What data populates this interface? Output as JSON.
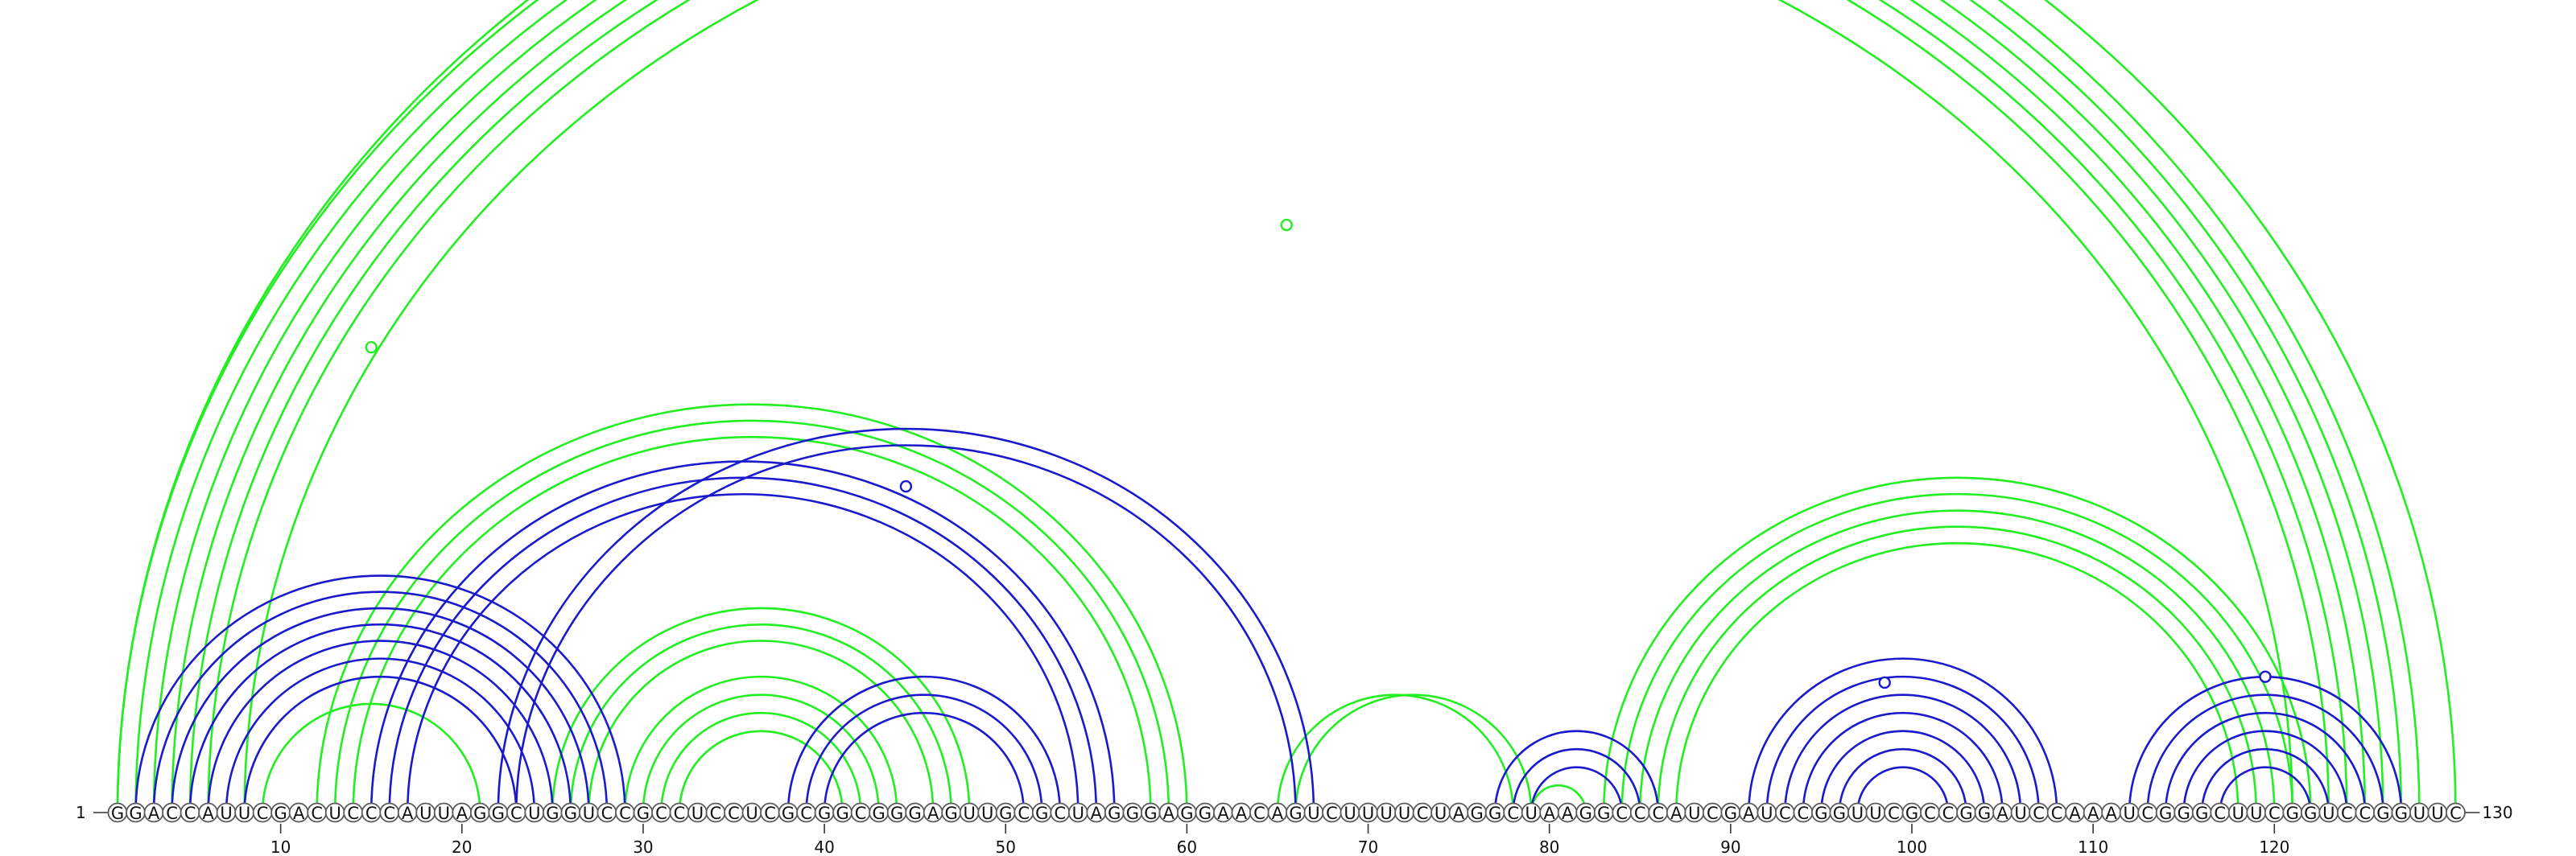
{
  "sequence": "GGACCAUUCGACUCCCAUUAGGCUGGUCCGCCUCCUCGCGGCGGGAGUUGCGCUAGGGAGGAACAGUCUUUUCUAGGCUAAGGCCCAUCGAUCCGGUUCGCCGGAUCCAAAUCGGGCUUCGGUCCGGUUC",
  "start_label": "1",
  "end_label": "130",
  "ticks": [
    10,
    20,
    30,
    40,
    50,
    60,
    70,
    80,
    90,
    100,
    110,
    120
  ],
  "colors": {
    "green": "#22ee22",
    "blue": "#1a1acc"
  },
  "arc_sets": [
    {
      "color": "green",
      "arcs": [
        [
          1,
          130
        ],
        [
          1,
          128
        ],
        [
          2,
          127
        ],
        [
          3,
          126
        ],
        [
          4,
          125
        ],
        [
          5,
          124
        ],
        [
          6,
          123
        ],
        [
          8,
          121
        ]
      ]
    },
    {
      "color": "green",
      "arcs": [
        [
          12,
          60
        ],
        [
          13,
          59
        ],
        [
          14,
          58
        ]
      ]
    },
    {
      "color": "green",
      "arcs": [
        [
          25,
          48
        ],
        [
          26,
          47
        ],
        [
          27,
          46
        ]
      ]
    },
    {
      "color": "green",
      "arcs": [
        [
          9,
          21
        ]
      ]
    },
    {
      "color": "green",
      "arcs": [
        [
          29,
          44
        ],
        [
          30,
          43
        ],
        [
          31,
          42
        ],
        [
          32,
          41
        ]
      ]
    },
    {
      "color": "green",
      "arcs": [
        [
          65,
          78
        ],
        [
          66,
          79
        ]
      ]
    },
    {
      "color": "green",
      "arcs": [
        [
          79,
          82
        ]
      ]
    },
    {
      "color": "green",
      "arcs": [
        [
          83,
          122
        ],
        [
          84,
          121
        ],
        [
          85,
          120
        ],
        [
          86,
          119
        ],
        [
          87,
          118
        ]
      ]
    },
    {
      "color": "blue",
      "arcs": [
        [
          2,
          29
        ],
        [
          3,
          28
        ],
        [
          4,
          27
        ],
        [
          5,
          26
        ],
        [
          6,
          25
        ],
        [
          7,
          24
        ],
        [
          8,
          23
        ]
      ]
    },
    {
      "color": "blue",
      "arcs": [
        [
          15,
          56
        ],
        [
          16,
          55
        ],
        [
          17,
          54
        ]
      ]
    },
    {
      "color": "blue",
      "arcs": [
        [
          22,
          67
        ],
        [
          23,
          66
        ]
      ]
    },
    {
      "color": "blue",
      "arcs": [
        [
          38,
          53
        ],
        [
          39,
          52
        ],
        [
          40,
          51
        ]
      ]
    },
    {
      "color": "blue",
      "arcs": [
        [
          77,
          86
        ],
        [
          78,
          85
        ],
        [
          79,
          84
        ]
      ]
    },
    {
      "color": "blue",
      "arcs": [
        [
          91,
          108
        ],
        [
          92,
          107
        ],
        [
          93,
          106
        ],
        [
          94,
          105
        ],
        [
          95,
          104
        ],
        [
          96,
          103
        ],
        [
          97,
          102
        ]
      ]
    },
    {
      "color": "blue",
      "arcs": [
        [
          112,
          127
        ],
        [
          113,
          126
        ],
        [
          114,
          125
        ],
        [
          115,
          124
        ],
        [
          116,
          123
        ],
        [
          117,
          122
        ]
      ]
    }
  ],
  "markers": [
    {
      "color": "green",
      "pos": 65.5,
      "height": 0.55
    },
    {
      "color": "green",
      "pos": 15,
      "height": 0.7
    },
    {
      "color": "blue",
      "pos": 44.5,
      "height": 0.85
    },
    {
      "color": "green",
      "pos": 80.5,
      "height": 0.9
    },
    {
      "color": "blue",
      "pos": 98.5,
      "height": 0.85
    },
    {
      "color": "blue",
      "pos": 119.5,
      "height": 1.0
    }
  ]
}
